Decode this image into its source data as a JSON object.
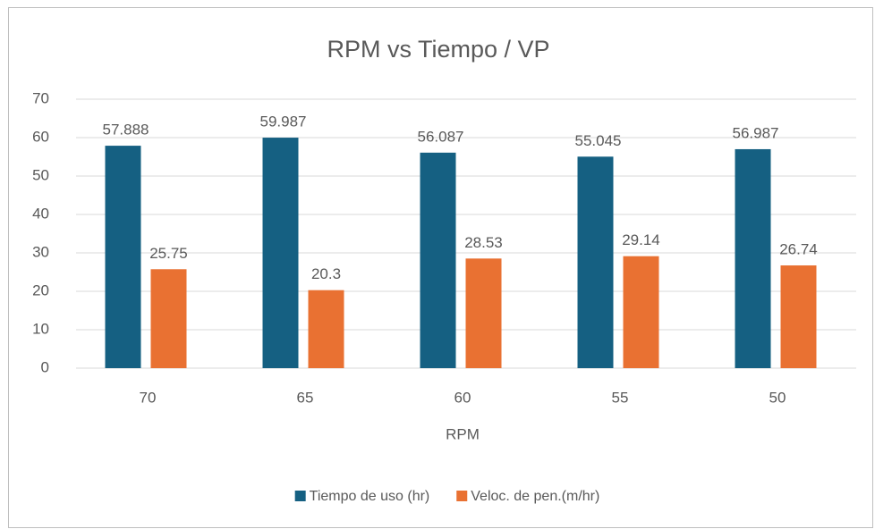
{
  "chart_data": {
    "type": "bar",
    "title": "RPM vs Tiempo / VP",
    "x_label": "RPM",
    "categories": [
      "70",
      "65",
      "60",
      "55",
      "50"
    ],
    "series": [
      {
        "name": "Tiempo de uso (hr)",
        "color": "#156082",
        "values": [
          57.888,
          59.987,
          56.087,
          55.045,
          56.987
        ]
      },
      {
        "name": "Veloc. de pen.(m/hr)",
        "color": "#e97132",
        "values": [
          25.75,
          20.3,
          28.53,
          29.14,
          26.74
        ]
      }
    ],
    "ylim": [
      0,
      70
    ],
    "yticks": [
      0,
      10,
      20,
      30,
      40,
      50,
      60,
      70
    ],
    "grid": true,
    "legend": "bottom"
  }
}
